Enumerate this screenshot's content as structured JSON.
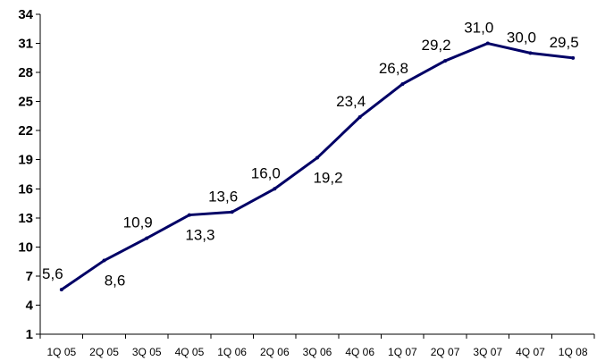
{
  "chart_data": {
    "type": "line",
    "categories": [
      "1Q 05",
      "2Q 05",
      "3Q 05",
      "4Q 05",
      "1Q 06",
      "2Q 06",
      "3Q 06",
      "4Q 06",
      "1Q 07",
      "2Q 07",
      "3Q 07",
      "4Q 07",
      "1Q 08"
    ],
    "series": [
      {
        "values": [
          5.6,
          8.6,
          10.9,
          13.3,
          13.6,
          16.0,
          19.2,
          23.4,
          26.8,
          29.2,
          31.0,
          30.0,
          29.5
        ],
        "labels": [
          "5,6",
          "8,6",
          "10,9",
          "13,3",
          "13,6",
          "16,0",
          "19,2",
          "23,4",
          "26,8",
          "29,2",
          "31,0",
          "30,0",
          "29,5"
        ],
        "label_position": [
          "above",
          "below",
          "above",
          "below",
          "above",
          "above",
          "below",
          "above",
          "above",
          "above",
          "above",
          "above",
          "above"
        ],
        "color": "#000066"
      }
    ],
    "yticks": [
      "1",
      "4",
      "7",
      "10",
      "13",
      "16",
      "19",
      "22",
      "25",
      "28",
      "31",
      "34"
    ],
    "ylim": [
      1,
      34
    ],
    "grid": false,
    "title": "",
    "xlabel": "",
    "ylabel": ""
  }
}
